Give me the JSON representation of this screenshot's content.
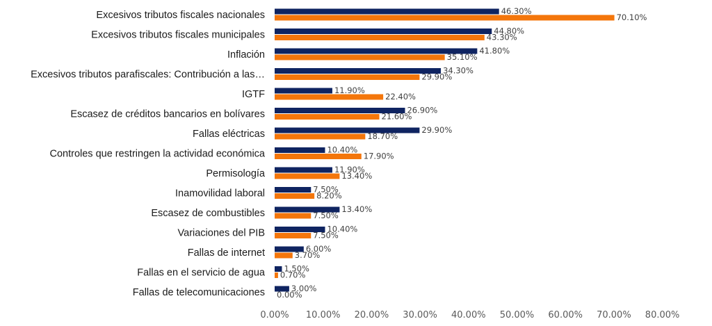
{
  "chart_data": {
    "type": "bar",
    "orientation": "horizontal",
    "categories": [
      "Excesivos tributos fiscales nacionales",
      "Excesivos tributos fiscales municipales",
      "Inflación",
      "Excesivos tributos parafiscales: Contribución a las…",
      "IGTF",
      "Escasez de créditos bancarios en bolívares",
      "Fallas eléctricas",
      "Controles que restringen la actividad económica",
      "Permisología",
      "Inamovilidad laboral",
      "Escasez de combustibles",
      "Variaciones del PIB",
      "Fallas de internet",
      "Fallas en el servicio de agua",
      "Fallas de telecomunicaciones"
    ],
    "series": [
      {
        "color": "#0f2461",
        "values": [
          46.3,
          44.8,
          41.8,
          34.3,
          11.9,
          26.9,
          29.9,
          10.4,
          11.9,
          7.5,
          13.4,
          10.4,
          6.0,
          1.5,
          3.0
        ],
        "labels": [
          "46.30%",
          "44.80%",
          "41.80%",
          "34.30%",
          "11.90%",
          "26.90%",
          "29.90%",
          "10.40%",
          "11.90%",
          "7.50%",
          "13.40%",
          "10.40%",
          "6.00%",
          "1.50%",
          "3.00%"
        ]
      },
      {
        "color": "#f4760b",
        "values": [
          70.1,
          43.3,
          35.1,
          29.9,
          22.4,
          21.6,
          18.7,
          17.9,
          13.4,
          8.2,
          7.5,
          7.5,
          3.7,
          0.7,
          0.0
        ],
        "labels": [
          "70.10%",
          "43.30%",
          "35.10%",
          "29.90%",
          "22.40%",
          "21.60%",
          "18.70%",
          "17.90%",
          "13.40%",
          "8.20%",
          "7.50%",
          "7.50%",
          "3.70%",
          "0.70%",
          "0.00%"
        ]
      }
    ],
    "xlim": [
      0,
      80
    ],
    "x_ticks": [
      "0.00%",
      "10.00%",
      "20.00%",
      "30.00%",
      "40.00%",
      "50.00%",
      "60.00%",
      "70.00%",
      "80.00%"
    ],
    "grid": false,
    "legend": "none"
  }
}
